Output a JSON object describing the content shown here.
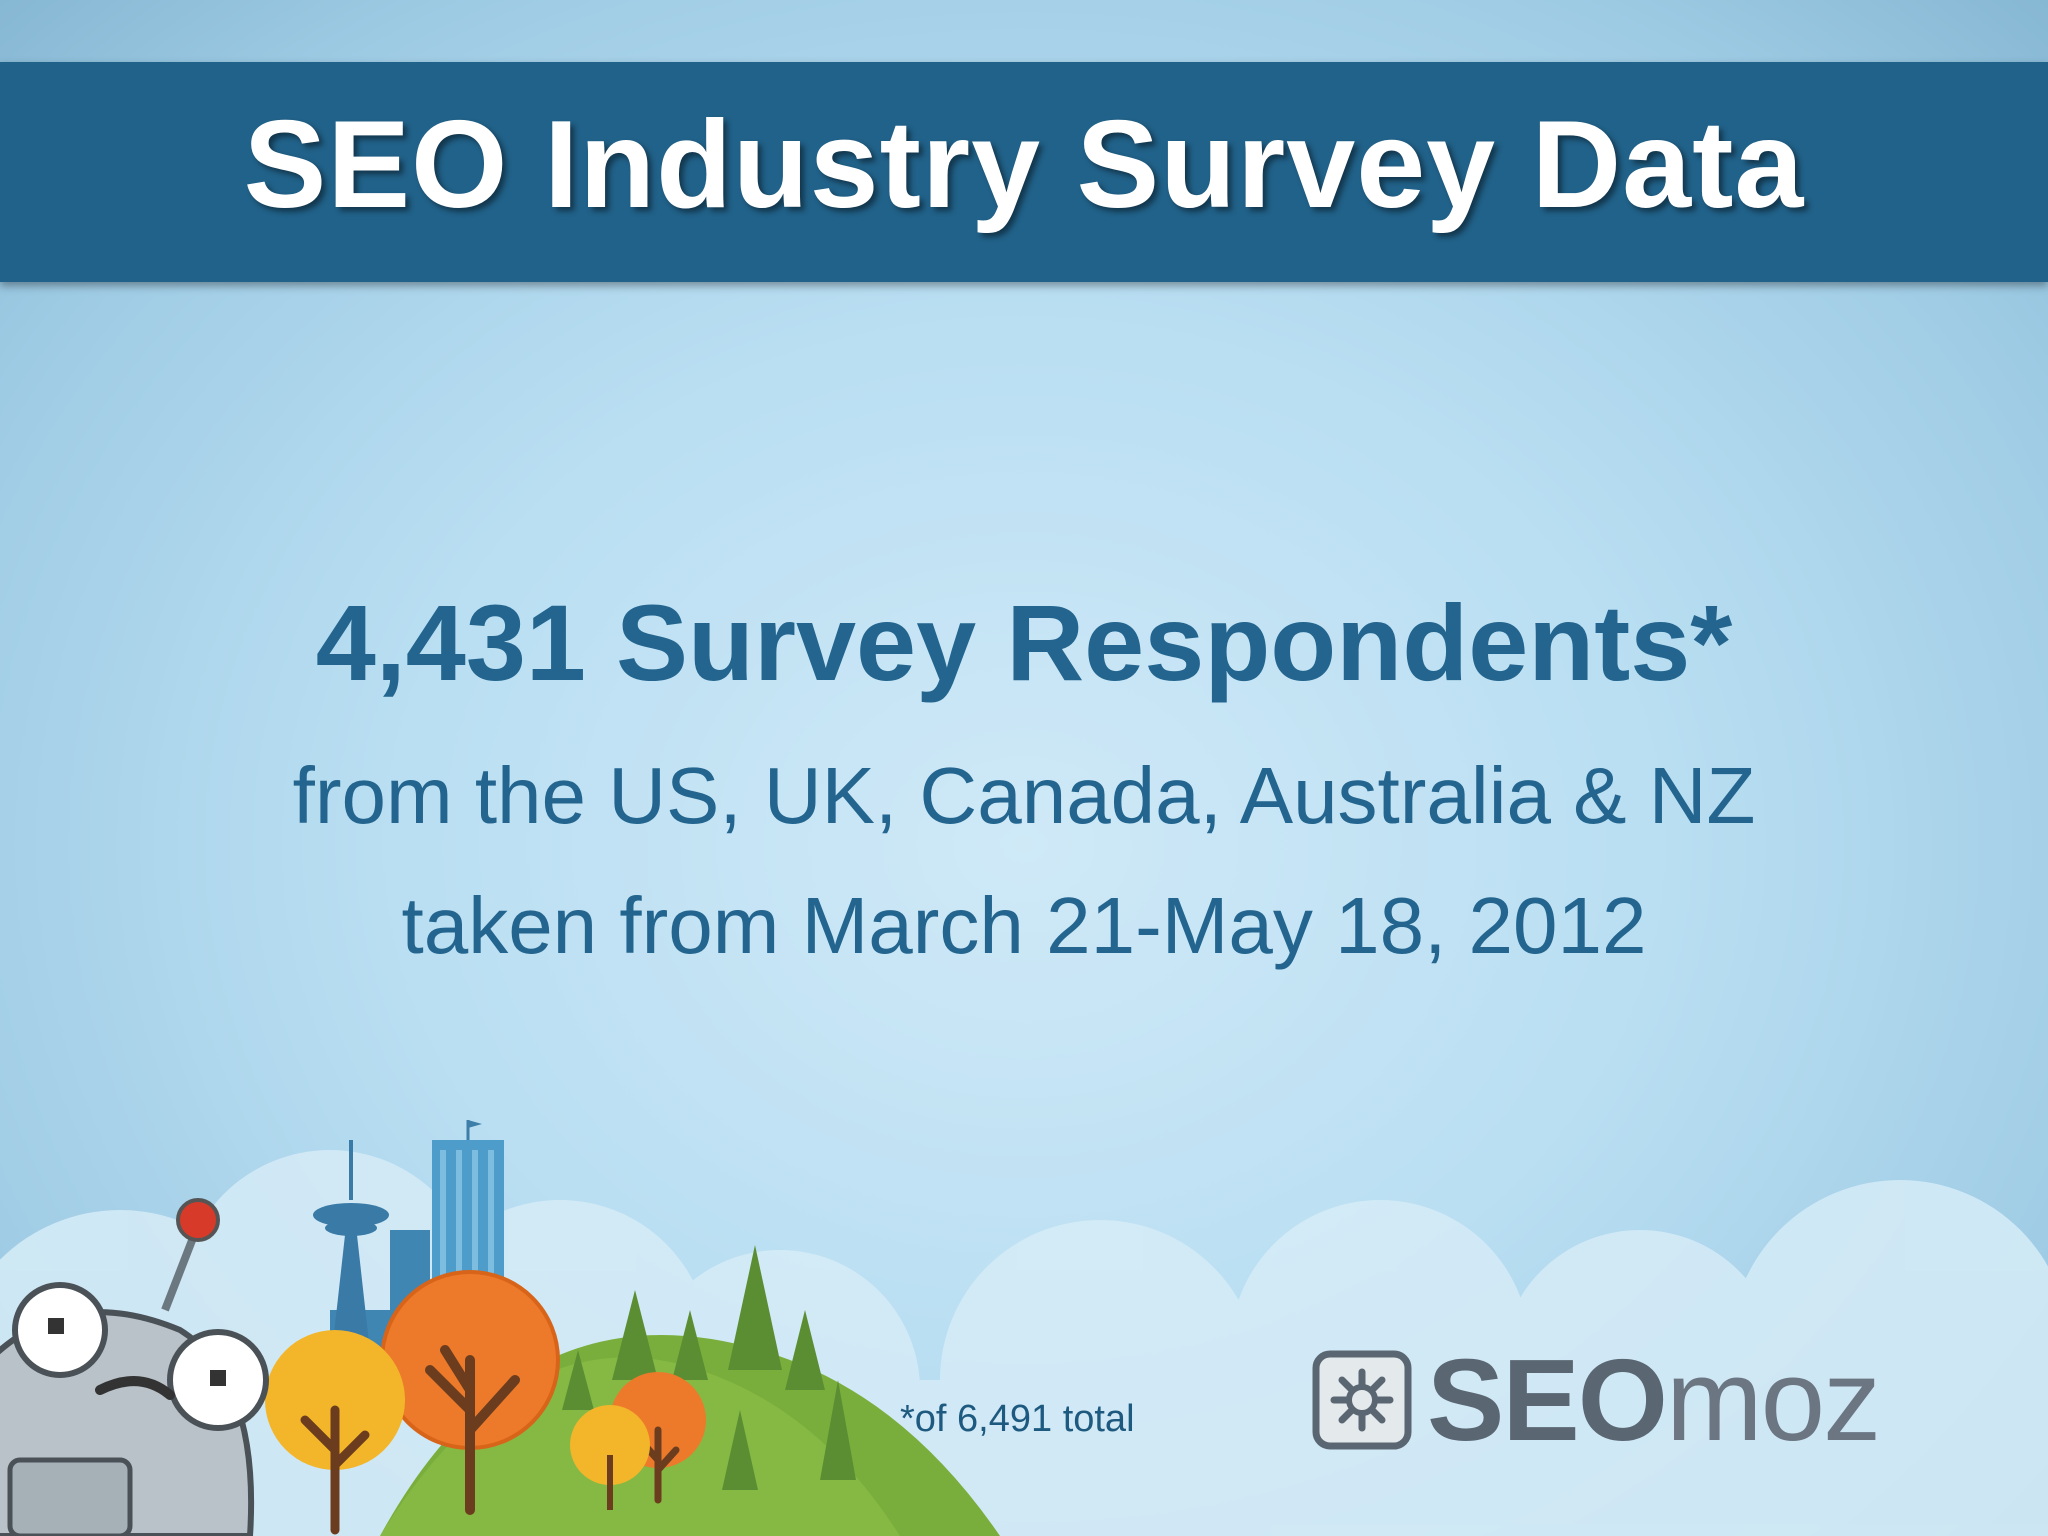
{
  "header": {
    "title": "SEO Industry Survey Data"
  },
  "main": {
    "headline": "4,431 Survey Respondents*",
    "line1": "from the US, UK, Canada, Australia & NZ",
    "line2": "taken from March 21-May 18, 2012",
    "footnote": "*of 6,491 total"
  },
  "logo": {
    "bold_part": "SEO",
    "light_part": "moz"
  },
  "colors": {
    "title_bar": "#21628a",
    "text": "#23658e",
    "background": "#b9def2",
    "hill": "#7aae3c"
  },
  "icons": [
    "robot-mascot-illustration",
    "space-needle-illustration",
    "seomoz-logo-icon"
  ]
}
